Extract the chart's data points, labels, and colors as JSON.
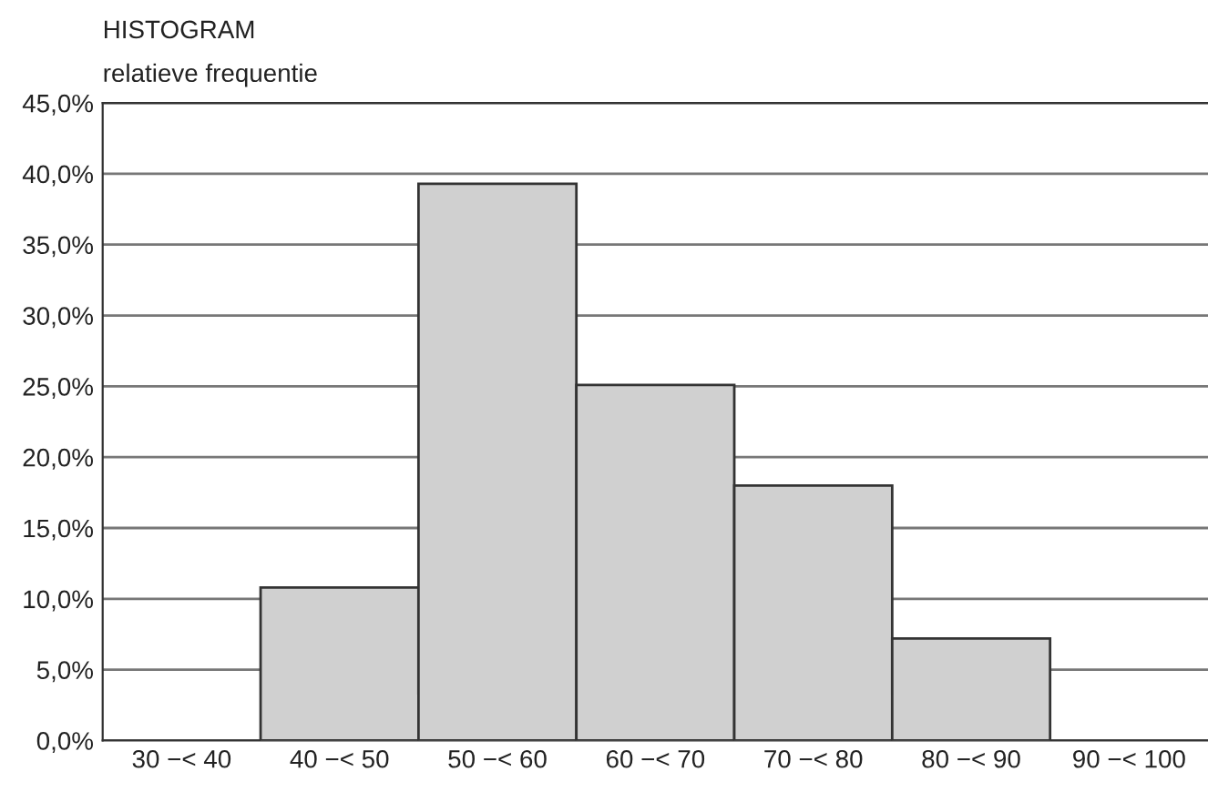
{
  "chart_data": {
    "type": "bar",
    "title": "HISTOGRAM",
    "ylabel": "relatieve frequentie",
    "categories": [
      "30 −< 40",
      "40 −< 50",
      "50 −< 60",
      "60 −< 70",
      "70 −< 80",
      "80 −< 90",
      "90 −< 100"
    ],
    "values": [
      0,
      10.8,
      39.3,
      25.1,
      18.0,
      7.2,
      0
    ],
    "color": "#d0d0d0",
    "ylim": [
      0,
      45
    ],
    "yticks": [
      {
        "value": 0,
        "label": "0,0%"
      },
      {
        "value": 5,
        "label": "5,0%"
      },
      {
        "value": 10,
        "label": "10,0%"
      },
      {
        "value": 15,
        "label": "15,0%"
      },
      {
        "value": 20,
        "label": "20,0%"
      },
      {
        "value": 25,
        "label": "25,0%"
      },
      {
        "value": 30,
        "label": "30,0%"
      },
      {
        "value": 35,
        "label": "35,0%"
      },
      {
        "value": 40,
        "label": "40,0%"
      },
      {
        "value": 45,
        "label": "45,0%"
      }
    ],
    "grid": "y"
  }
}
